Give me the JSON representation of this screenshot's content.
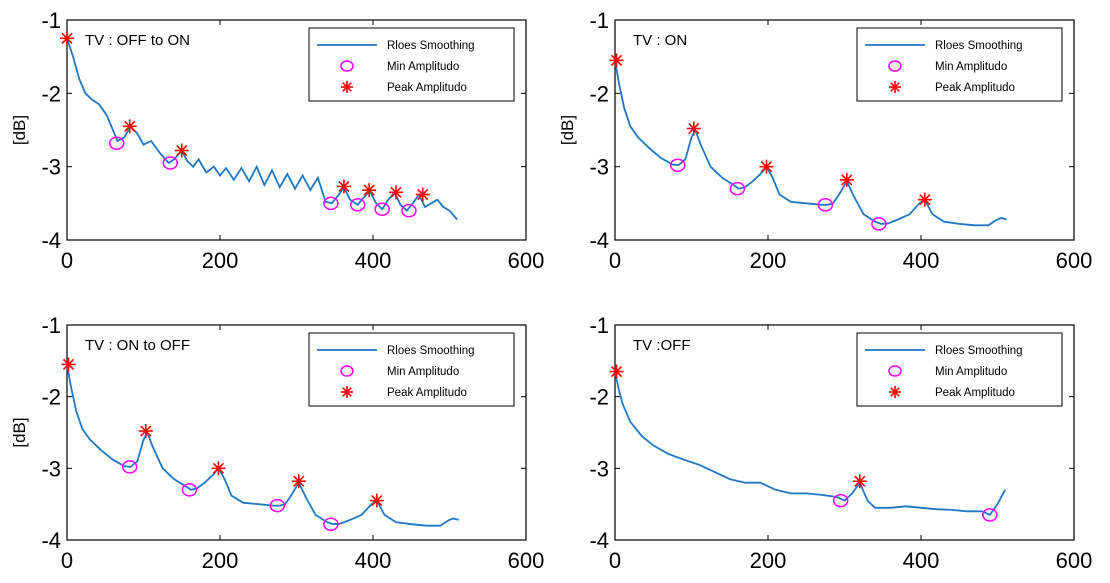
{
  "colors": {
    "line": "#1f77c4",
    "min": "#ff00ff",
    "peak": "#ff0000"
  },
  "chart_data": [
    {
      "type": "line",
      "title": "TV : OFF to ON",
      "ylabel": "[dB]",
      "xlim": [
        0,
        600
      ],
      "ylim": [
        -4,
        -1
      ],
      "xticks": [
        0,
        200,
        400,
        600
      ],
      "yticks": [
        -1,
        -2,
        -3,
        -4
      ],
      "legend": [
        "Rloes Smoothing",
        "Min Amplitudo",
        "Peak Amplitudo"
      ],
      "legend_position": "top-right",
      "series": [
        {
          "name": "Rloes Smoothing",
          "x": [
            0,
            8,
            16,
            24,
            32,
            42,
            52,
            60,
            66,
            75,
            83,
            92,
            100,
            110,
            122,
            133,
            140,
            150,
            157,
            165,
            172,
            182,
            192,
            200,
            208,
            218,
            228,
            238,
            248,
            258,
            268,
            278,
            288,
            298,
            308,
            318,
            328,
            338,
            346,
            354,
            362,
            370,
            380,
            388,
            396,
            404,
            412,
            420,
            428,
            436,
            444,
            452,
            460,
            468,
            476,
            484,
            492,
            500,
            510
          ],
          "y": [
            -1.25,
            -1.5,
            -1.8,
            -2.0,
            -2.08,
            -2.15,
            -2.3,
            -2.5,
            -2.65,
            -2.6,
            -2.45,
            -2.55,
            -2.7,
            -2.65,
            -2.82,
            -2.95,
            -2.9,
            -2.78,
            -2.92,
            -3.0,
            -2.9,
            -3.08,
            -3.0,
            -3.12,
            -3.02,
            -3.18,
            -3.02,
            -3.2,
            -3.0,
            -3.25,
            -3.05,
            -3.28,
            -3.1,
            -3.3,
            -3.12,
            -3.32,
            -3.15,
            -3.48,
            -3.5,
            -3.4,
            -3.28,
            -3.45,
            -3.52,
            -3.42,
            -3.33,
            -3.5,
            -3.58,
            -3.45,
            -3.35,
            -3.52,
            -3.6,
            -3.5,
            -3.38,
            -3.55,
            -3.5,
            -3.45,
            -3.55,
            -3.6,
            -3.72
          ]
        }
      ],
      "min_points": {
        "x": [
          65,
          135,
          345,
          380,
          412,
          447
        ],
        "y": [
          -2.68,
          -2.95,
          -3.5,
          -3.52,
          -3.58,
          -3.6
        ]
      },
      "peak_points": {
        "x": [
          0,
          82,
          150,
          362,
          395,
          430,
          465
        ],
        "y": [
          -1.25,
          -2.45,
          -2.78,
          -3.27,
          -3.32,
          -3.35,
          -3.38
        ]
      }
    },
    {
      "type": "line",
      "title": "TV : ON",
      "ylabel": "[dB]",
      "xlim": [
        0,
        600
      ],
      "ylim": [
        -4,
        -1
      ],
      "xticks": [
        0,
        200,
        400,
        600
      ],
      "yticks": [
        -1,
        -2,
        -3,
        -4
      ],
      "legend": [
        "Rloes Smoothing",
        "Min Amplitudo",
        "Peak Amplitudo"
      ],
      "legend_position": "top-right",
      "series": [
        {
          "name": "Rloes Smoothing",
          "x": [
            0,
            5,
            12,
            20,
            30,
            45,
            60,
            75,
            83,
            92,
            100,
            105,
            112,
            125,
            140,
            155,
            162,
            170,
            180,
            190,
            198,
            206,
            215,
            230,
            250,
            270,
            278,
            285,
            293,
            303,
            312,
            325,
            340,
            348,
            358,
            370,
            385,
            398,
            405,
            415,
            430,
            450,
            470,
            488,
            495,
            500,
            505,
            512
          ],
          "y": [
            -1.55,
            -1.85,
            -2.2,
            -2.45,
            -2.6,
            -2.75,
            -2.88,
            -2.97,
            -2.98,
            -2.9,
            -2.6,
            -2.5,
            -2.7,
            -3.0,
            -3.15,
            -3.25,
            -3.3,
            -3.28,
            -3.2,
            -3.1,
            -3.0,
            -3.15,
            -3.38,
            -3.48,
            -3.5,
            -3.52,
            -3.52,
            -3.5,
            -3.38,
            -3.2,
            -3.4,
            -3.65,
            -3.75,
            -3.78,
            -3.77,
            -3.72,
            -3.65,
            -3.5,
            -3.45,
            -3.65,
            -3.75,
            -3.78,
            -3.8,
            -3.8,
            -3.75,
            -3.72,
            -3.7,
            -3.72
          ]
        }
      ],
      "min_points": {
        "x": [
          82,
          160,
          275,
          345
        ],
        "y": [
          -2.98,
          -3.3,
          -3.52,
          -3.78
        ]
      },
      "peak_points": {
        "x": [
          2,
          103,
          198,
          303,
          405
        ],
        "y": [
          -1.55,
          -2.48,
          -3.0,
          -3.18,
          -3.45
        ]
      }
    },
    {
      "type": "line",
      "title": "TV : ON to OFF",
      "ylabel": "[dB]",
      "xlim": [
        0,
        600
      ],
      "ylim": [
        -4,
        -1
      ],
      "xticks": [
        0,
        200,
        400,
        600
      ],
      "yticks": [
        -1,
        -2,
        -3,
        -4
      ],
      "legend": [
        "Rloes Smoothing",
        "Min Amplitudo",
        "Peak Amplitudo"
      ],
      "legend_position": "top-right",
      "series": [
        {
          "name": "Rloes Smoothing",
          "x": [
            0,
            5,
            12,
            20,
            30,
            45,
            60,
            75,
            83,
            92,
            100,
            105,
            112,
            125,
            140,
            155,
            162,
            170,
            180,
            190,
            198,
            206,
            215,
            230,
            250,
            270,
            278,
            285,
            293,
            303,
            312,
            325,
            340,
            348,
            358,
            370,
            385,
            398,
            405,
            415,
            430,
            450,
            470,
            488,
            495,
            500,
            505,
            512
          ],
          "y": [
            -1.55,
            -1.85,
            -2.2,
            -2.45,
            -2.6,
            -2.75,
            -2.88,
            -2.97,
            -2.98,
            -2.9,
            -2.6,
            -2.5,
            -2.7,
            -3.0,
            -3.15,
            -3.25,
            -3.3,
            -3.28,
            -3.2,
            -3.1,
            -3.0,
            -3.15,
            -3.38,
            -3.48,
            -3.5,
            -3.52,
            -3.52,
            -3.5,
            -3.38,
            -3.2,
            -3.4,
            -3.65,
            -3.75,
            -3.78,
            -3.77,
            -3.72,
            -3.65,
            -3.5,
            -3.45,
            -3.65,
            -3.75,
            -3.78,
            -3.8,
            -3.8,
            -3.75,
            -3.72,
            -3.7,
            -3.72
          ]
        }
      ],
      "min_points": {
        "x": [
          82,
          160,
          275,
          345
        ],
        "y": [
          -2.98,
          -3.3,
          -3.52,
          -3.78
        ]
      },
      "peak_points": {
        "x": [
          2,
          103,
          198,
          303,
          405
        ],
        "y": [
          -1.55,
          -2.48,
          -3.0,
          -3.18,
          -3.45
        ]
      }
    },
    {
      "type": "line",
      "title": "TV :OFF",
      "ylabel": "",
      "xlim": [
        0,
        600
      ],
      "ylim": [
        -4,
        -1
      ],
      "xticks": [
        0,
        200,
        400,
        600
      ],
      "yticks": [
        -1,
        -2,
        -3,
        -4
      ],
      "legend": [
        "Rloes Smoothing",
        "Min Amplitudo",
        "Peak Amplitudo"
      ],
      "legend_position": "top-right",
      "series": [
        {
          "name": "Rloes Smoothing",
          "x": [
            0,
            5,
            10,
            20,
            35,
            50,
            70,
            90,
            110,
            130,
            150,
            170,
            190,
            210,
            230,
            250,
            270,
            290,
            300,
            310,
            320,
            330,
            340,
            360,
            380,
            400,
            420,
            440,
            460,
            480,
            490,
            500,
            510
          ],
          "y": [
            -1.65,
            -1.9,
            -2.1,
            -2.35,
            -2.55,
            -2.68,
            -2.8,
            -2.88,
            -2.95,
            -3.05,
            -3.15,
            -3.2,
            -3.2,
            -3.3,
            -3.35,
            -3.35,
            -3.37,
            -3.4,
            -3.45,
            -3.35,
            -3.2,
            -3.45,
            -3.55,
            -3.55,
            -3.53,
            -3.55,
            -3.57,
            -3.58,
            -3.6,
            -3.6,
            -3.65,
            -3.5,
            -3.3
          ]
        }
      ],
      "min_points": {
        "x": [
          295,
          490
        ],
        "y": [
          -3.45,
          -3.65
        ]
      },
      "peak_points": {
        "x": [
          2,
          320
        ],
        "y": [
          -1.65,
          -3.18
        ]
      }
    }
  ]
}
